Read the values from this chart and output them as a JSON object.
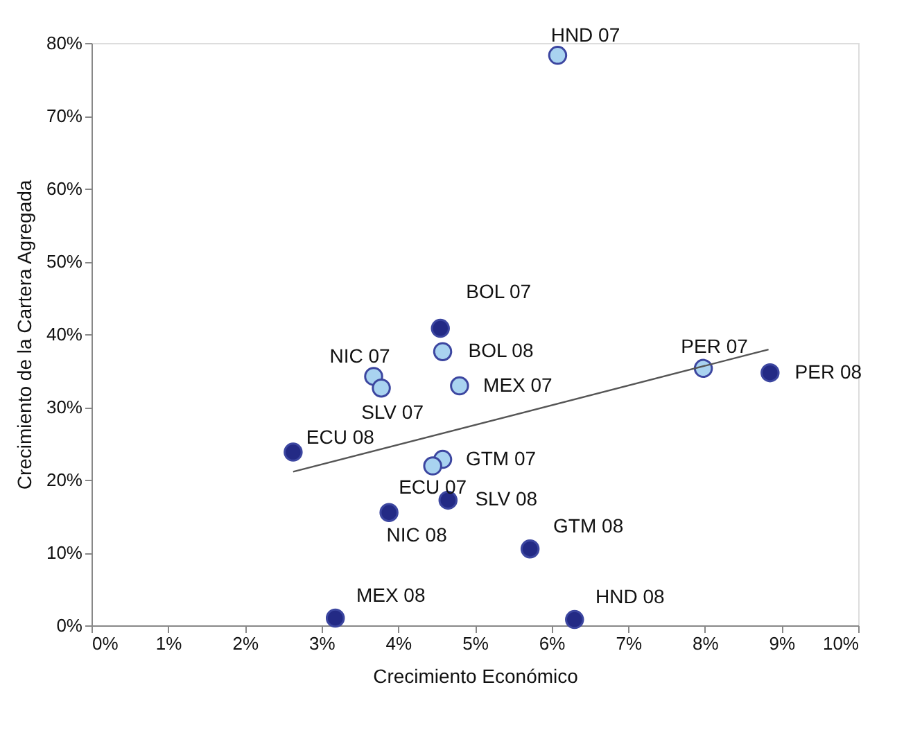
{
  "chart_data": {
    "type": "scatter",
    "xlabel": "Crecimiento Económico",
    "ylabel": "Crecimiento de la Cartera Agregada",
    "xlim": [
      0,
      10
    ],
    "ylim": [
      0,
      80
    ],
    "xticks": [
      {
        "value": 0,
        "label": "0%"
      },
      {
        "value": 1,
        "label": "1%"
      },
      {
        "value": 2,
        "label": "2%"
      },
      {
        "value": 3,
        "label": "3%"
      },
      {
        "value": 4,
        "label": "4%"
      },
      {
        "value": 5,
        "label": "5%"
      },
      {
        "value": 6,
        "label": "6%"
      },
      {
        "value": 7,
        "label": "7%"
      },
      {
        "value": 8,
        "label": "8%"
      },
      {
        "value": 9,
        "label": "9%"
      },
      {
        "value": 10,
        "label": "10%"
      }
    ],
    "yticks": [
      {
        "value": 0,
        "label": "0%"
      },
      {
        "value": 10,
        "label": "10%"
      },
      {
        "value": 20,
        "label": "20%"
      },
      {
        "value": 30,
        "label": "30%"
      },
      {
        "value": 40,
        "label": "40%"
      },
      {
        "value": 50,
        "label": "50%"
      },
      {
        "value": 60,
        "label": "60%"
      },
      {
        "value": 70,
        "label": "70%"
      },
      {
        "value": 80,
        "label": "80%"
      }
    ],
    "grid": false,
    "marker": "circle",
    "series": [
      {
        "color": "#a9d3f0",
        "x": [
          6.08,
          4.58,
          3.68,
          3.78,
          4.8,
          7.98,
          4.58,
          4.45
        ],
        "values": [
          78.3,
          37.6,
          34.2,
          32.6,
          32.9,
          35.3,
          22.8,
          21.9
        ]
      },
      {
        "color": "#232a85",
        "x": [
          4.55,
          8.85,
          2.63,
          4.65,
          3.88,
          5.72,
          3.18,
          6.3
        ],
        "values": [
          40.8,
          34.7,
          23.8,
          17.2,
          15.5,
          10.5,
          1.0,
          0.8
        ]
      },
      {
        "type": "line",
        "marker": "none",
        "line_style": "solid",
        "color": "#555555",
        "x": [
          2.63,
          8.83
        ],
        "values": [
          21.1,
          37.9
        ]
      }
    ],
    "annotations": [
      {
        "text": "HND 07",
        "x": 6.08,
        "y": 78.3
      },
      {
        "text": "BOL 08",
        "x": 4.58,
        "y": 37.6
      },
      {
        "text": "NIC 07",
        "x": 3.68,
        "y": 34.2
      },
      {
        "text": "SLV 07",
        "x": 3.78,
        "y": 32.6
      },
      {
        "text": "MEX 07",
        "x": 4.8,
        "y": 32.9
      },
      {
        "text": "PER 07",
        "x": 7.98,
        "y": 35.3
      },
      {
        "text": "GTM 07",
        "x": 4.58,
        "y": 22.8
      },
      {
        "text": "ECU 07",
        "x": 4.45,
        "y": 21.9
      },
      {
        "text": "BOL 07",
        "x": 4.55,
        "y": 40.8
      },
      {
        "text": "PER 08",
        "x": 8.85,
        "y": 34.7
      },
      {
        "text": "ECU 08",
        "x": 2.63,
        "y": 23.8
      },
      {
        "text": "SLV 08",
        "x": 4.65,
        "y": 17.2
      },
      {
        "text": "NIC 08",
        "x": 3.88,
        "y": 15.5
      },
      {
        "text": "GTM 08",
        "x": 5.72,
        "y": 10.5
      },
      {
        "text": "MEX 08",
        "x": 3.18,
        "y": 1.0
      },
      {
        "text": "HND 08",
        "x": 6.3,
        "y": 0.8
      }
    ]
  }
}
